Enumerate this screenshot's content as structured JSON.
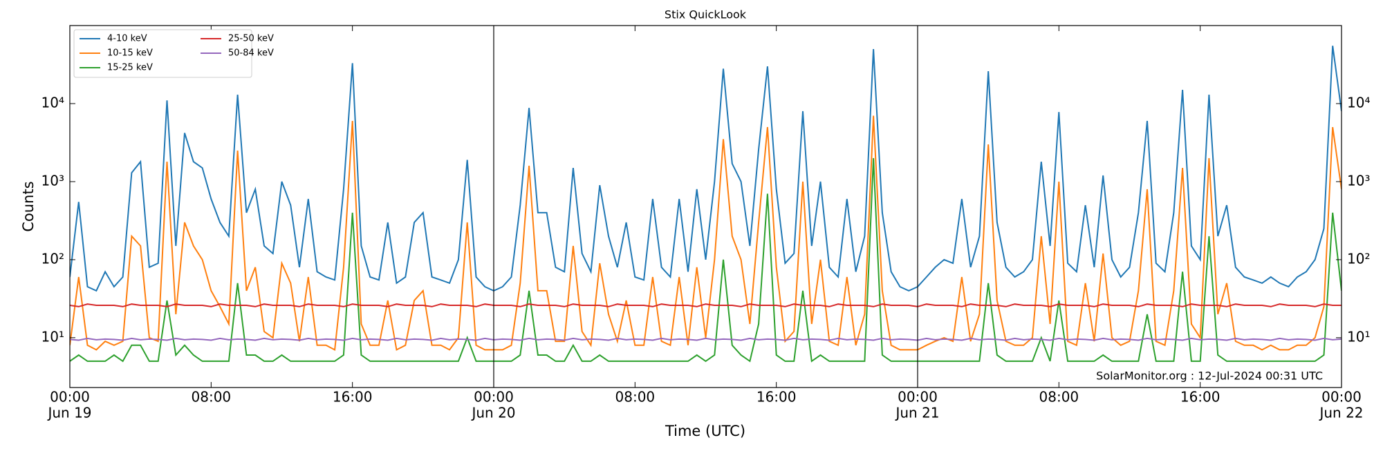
{
  "chart_data": {
    "type": "line",
    "title": "Stix QuickLook",
    "xlabel": "Time (UTC)",
    "ylabel": "Counts",
    "annotation": "SolarMonitor.org : 12-Jul-2024 00:31 UTC",
    "log_y": true,
    "legend": "upper left",
    "legend_columns": 2,
    "xlim": [
      0,
      72
    ],
    "ylim": [
      2.3,
      100000
    ],
    "xticks": [
      {
        "value": 0,
        "label": "00:00",
        "sublabel": "Jun 19"
      },
      {
        "value": 8,
        "label": "08:00"
      },
      {
        "value": 16,
        "label": "16:00"
      },
      {
        "value": 24,
        "label": "00:00",
        "sublabel": "Jun 20"
      },
      {
        "value": 32,
        "label": "08:00"
      },
      {
        "value": 40,
        "label": "16:00"
      },
      {
        "value": 48,
        "label": "00:00",
        "sublabel": "Jun 21"
      },
      {
        "value": 56,
        "label": "08:00"
      },
      {
        "value": 64,
        "label": "16:00"
      },
      {
        "value": 72,
        "label": "00:00",
        "sublabel": "Jun 22"
      }
    ],
    "yticks": [
      {
        "value": 10,
        "label": "10¹"
      },
      {
        "value": 100,
        "label": "10²"
      },
      {
        "value": 1000,
        "label": "10³"
      },
      {
        "value": 10000,
        "label": "10⁴"
      }
    ],
    "x": [
      0,
      0.5,
      1,
      1.5,
      2,
      2.5,
      3,
      3.5,
      4,
      4.5,
      5,
      5.5,
      6,
      6.5,
      7,
      7.5,
      8,
      8.5,
      9,
      9.5,
      10,
      10.5,
      11,
      11.5,
      12,
      12.5,
      13,
      13.5,
      14,
      14.5,
      15,
      15.5,
      16,
      16.5,
      17,
      17.5,
      18,
      18.5,
      19,
      19.5,
      20,
      20.5,
      21,
      21.5,
      22,
      22.5,
      23,
      23.5,
      24,
      24.5,
      25,
      25.5,
      26,
      26.5,
      27,
      27.5,
      28,
      28.5,
      29,
      29.5,
      30,
      30.5,
      31,
      31.5,
      32,
      32.5,
      33,
      33.5,
      34,
      34.5,
      35,
      35.5,
      36,
      36.5,
      37,
      37.5,
      38,
      38.5,
      39,
      39.5,
      40,
      40.5,
      41,
      41.5,
      42,
      42.5,
      43,
      43.5,
      44,
      44.5,
      45,
      45.5,
      46,
      46.5,
      47,
      47.5,
      48,
      48.5,
      49,
      49.5,
      50,
      50.5,
      51,
      51.5,
      52,
      52.5,
      53,
      53.5,
      54,
      54.5,
      55,
      55.5,
      56,
      56.5,
      57,
      57.5,
      58,
      58.5,
      59,
      59.5,
      60,
      60.5,
      61,
      61.5,
      62,
      62.5,
      63,
      63.5,
      64,
      64.5,
      65,
      65.5,
      66,
      66.5,
      67,
      67.5,
      68,
      68.5,
      69,
      69.5,
      70,
      70.5,
      71,
      71.5,
      72
    ],
    "series": [
      {
        "name": "4-10 keV",
        "color": "#1f77b4",
        "values": [
          60,
          550,
          45,
          40,
          70,
          45,
          60,
          1300,
          1800,
          80,
          90,
          11000,
          150,
          4200,
          1800,
          1500,
          600,
          300,
          200,
          13000,
          400,
          800,
          150,
          120,
          1000,
          500,
          80,
          600,
          70,
          60,
          55,
          800,
          33000,
          150,
          60,
          55,
          300,
          50,
          60,
          300,
          400,
          60,
          55,
          50,
          100,
          1900,
          60,
          45,
          40,
          45,
          60,
          500,
          8800,
          400,
          400,
          80,
          70,
          1500,
          120,
          70,
          900,
          200,
          80,
          300,
          60,
          55,
          600,
          80,
          60,
          600,
          70,
          800,
          100,
          1000,
          28000,
          1700,
          1000,
          150,
          2600,
          30000,
          800,
          90,
          120,
          8000,
          150,
          1000,
          80,
          60,
          600,
          70,
          200,
          50000,
          400,
          70,
          45,
          40,
          45,
          60,
          80,
          100,
          90,
          600,
          80,
          200,
          26000,
          300,
          80,
          60,
          70,
          100,
          1800,
          150,
          7800,
          90,
          70,
          500,
          80,
          1200,
          100,
          60,
          80,
          400,
          6000,
          90,
          70,
          400,
          15000,
          150,
          100,
          13000,
          200,
          500,
          80,
          60,
          55,
          50,
          60,
          50,
          45,
          60,
          70,
          100,
          250,
          55000,
          8000
        ]
      },
      {
        "name": "10-15 keV",
        "color": "#ff7f0e",
        "values": [
          8,
          60,
          8,
          7,
          9,
          8,
          9,
          200,
          150,
          10,
          9,
          1800,
          20,
          300,
          150,
          100,
          40,
          25,
          15,
          2500,
          40,
          80,
          12,
          10,
          90,
          50,
          9,
          60,
          8,
          8,
          7,
          80,
          6000,
          15,
          8,
          8,
          30,
          7,
          8,
          30,
          40,
          8,
          8,
          7,
          10,
          300,
          8,
          7,
          7,
          7,
          8,
          50,
          1600,
          40,
          40,
          9,
          9,
          150,
          12,
          8,
          90,
          20,
          9,
          30,
          8,
          8,
          60,
          9,
          8,
          60,
          8,
          80,
          10,
          100,
          3500,
          200,
          100,
          15,
          300,
          5000,
          80,
          9,
          12,
          1000,
          15,
          100,
          9,
          8,
          60,
          8,
          20,
          7000,
          40,
          8,
          7,
          7,
          7,
          8,
          9,
          10,
          9,
          60,
          9,
          20,
          3000,
          30,
          9,
          8,
          8,
          10,
          200,
          15,
          1000,
          9,
          8,
          50,
          9,
          120,
          10,
          8,
          9,
          40,
          800,
          9,
          8,
          40,
          1500,
          15,
          10,
          2000,
          20,
          50,
          9,
          8,
          8,
          7,
          8,
          7,
          7,
          8,
          8,
          10,
          25,
          5000,
          800
        ]
      },
      {
        "name": "15-25 keV",
        "color": "#2ca02c",
        "values": [
          5,
          6,
          5,
          5,
          5,
          6,
          5,
          8,
          8,
          5,
          5,
          30,
          6,
          8,
          6,
          5,
          5,
          5,
          5,
          50,
          6,
          6,
          5,
          5,
          6,
          5,
          5,
          5,
          5,
          5,
          5,
          6,
          400,
          6,
          5,
          5,
          5,
          5,
          5,
          5,
          5,
          5,
          5,
          5,
          5,
          10,
          5,
          5,
          5,
          5,
          5,
          6,
          40,
          6,
          6,
          5,
          5,
          8,
          5,
          5,
          6,
          5,
          5,
          5,
          5,
          5,
          5,
          5,
          5,
          5,
          5,
          6,
          5,
          6,
          100,
          8,
          6,
          5,
          15,
          700,
          6,
          5,
          5,
          40,
          5,
          6,
          5,
          5,
          5,
          5,
          5,
          2000,
          6,
          5,
          5,
          5,
          5,
          5,
          5,
          5,
          5,
          5,
          5,
          5,
          50,
          6,
          5,
          5,
          5,
          5,
          10,
          5,
          30,
          5,
          5,
          5,
          5,
          6,
          5,
          5,
          5,
          5,
          20,
          5,
          5,
          5,
          70,
          5,
          5,
          200,
          6,
          5,
          5,
          5,
          5,
          5,
          5,
          5,
          5,
          5,
          5,
          5,
          6,
          400,
          40
        ]
      },
      {
        "name": "25-50 keV",
        "color": "#d62728",
        "values": [
          26,
          25,
          27,
          26,
          26,
          26,
          25,
          27,
          26,
          26,
          26,
          25,
          27,
          26,
          26,
          26,
          25,
          27,
          26,
          26,
          26,
          25,
          27,
          26,
          26,
          26,
          25,
          27,
          26,
          26,
          26,
          25,
          27,
          26,
          26,
          26,
          25,
          27,
          26,
          26,
          26,
          25,
          27,
          26,
          26,
          26,
          25,
          27,
          26,
          26,
          26,
          25,
          27,
          26,
          26,
          26,
          25,
          27,
          26,
          26,
          26,
          25,
          27,
          26,
          26,
          26,
          25,
          27,
          26,
          26,
          26,
          25,
          27,
          26,
          26,
          26,
          25,
          27,
          26,
          26,
          26,
          25,
          27,
          26,
          26,
          26,
          25,
          27,
          26,
          26,
          26,
          25,
          27,
          26,
          26,
          26,
          25,
          27,
          26,
          26,
          26,
          25,
          27,
          26,
          26,
          26,
          25,
          27,
          26,
          26,
          26,
          25,
          27,
          26,
          26,
          26,
          25,
          27,
          26,
          26,
          26,
          25,
          27,
          26,
          26,
          26,
          25,
          27,
          26,
          26,
          26,
          25,
          27,
          26,
          26,
          26,
          25,
          27,
          26,
          26,
          26,
          25,
          27,
          26,
          26
        ]
      },
      {
        "name": "50-84 keV",
        "color": "#9467bd",
        "values": [
          9.5,
          9.3,
          9.8,
          9.4,
          9.6,
          9.5,
          9.3,
          9.8,
          9.4,
          9.6,
          9.5,
          9.3,
          9.8,
          9.4,
          9.6,
          9.5,
          9.3,
          9.8,
          9.4,
          9.6,
          9.5,
          9.3,
          9.8,
          9.4,
          9.6,
          9.5,
          9.3,
          9.8,
          9.4,
          9.6,
          9.5,
          9.3,
          9.8,
          9.4,
          9.6,
          9.5,
          9.3,
          9.8,
          9.4,
          9.6,
          9.5,
          9.3,
          9.8,
          9.4,
          9.6,
          9.5,
          9.3,
          9.8,
          9.4,
          9.6,
          9.5,
          9.3,
          9.8,
          9.4,
          9.6,
          9.5,
          9.3,
          9.8,
          9.4,
          9.6,
          9.5,
          9.3,
          9.8,
          9.4,
          9.6,
          9.5,
          9.3,
          9.8,
          9.4,
          9.6,
          9.5,
          9.3,
          9.8,
          9.4,
          9.6,
          9.5,
          9.3,
          9.8,
          9.4,
          9.6,
          9.5,
          9.3,
          9.8,
          9.4,
          9.6,
          9.5,
          9.3,
          9.8,
          9.4,
          9.6,
          9.5,
          9.3,
          9.8,
          9.4,
          9.6,
          9.5,
          9.3,
          9.8,
          9.4,
          9.6,
          9.5,
          9.3,
          9.8,
          9.4,
          9.6,
          9.5,
          9.3,
          9.8,
          9.4,
          9.6,
          9.5,
          9.3,
          9.8,
          9.4,
          9.6,
          9.5,
          9.3,
          9.8,
          9.4,
          9.6,
          9.5,
          9.3,
          9.8,
          9.4,
          9.6,
          9.5,
          9.3,
          9.8,
          9.4,
          9.6,
          9.5,
          9.3,
          9.8,
          9.4,
          9.6,
          9.5,
          9.3,
          9.8,
          9.4,
          9.6,
          9.5,
          9.3,
          9.8,
          9.4,
          9.6
        ]
      }
    ]
  }
}
